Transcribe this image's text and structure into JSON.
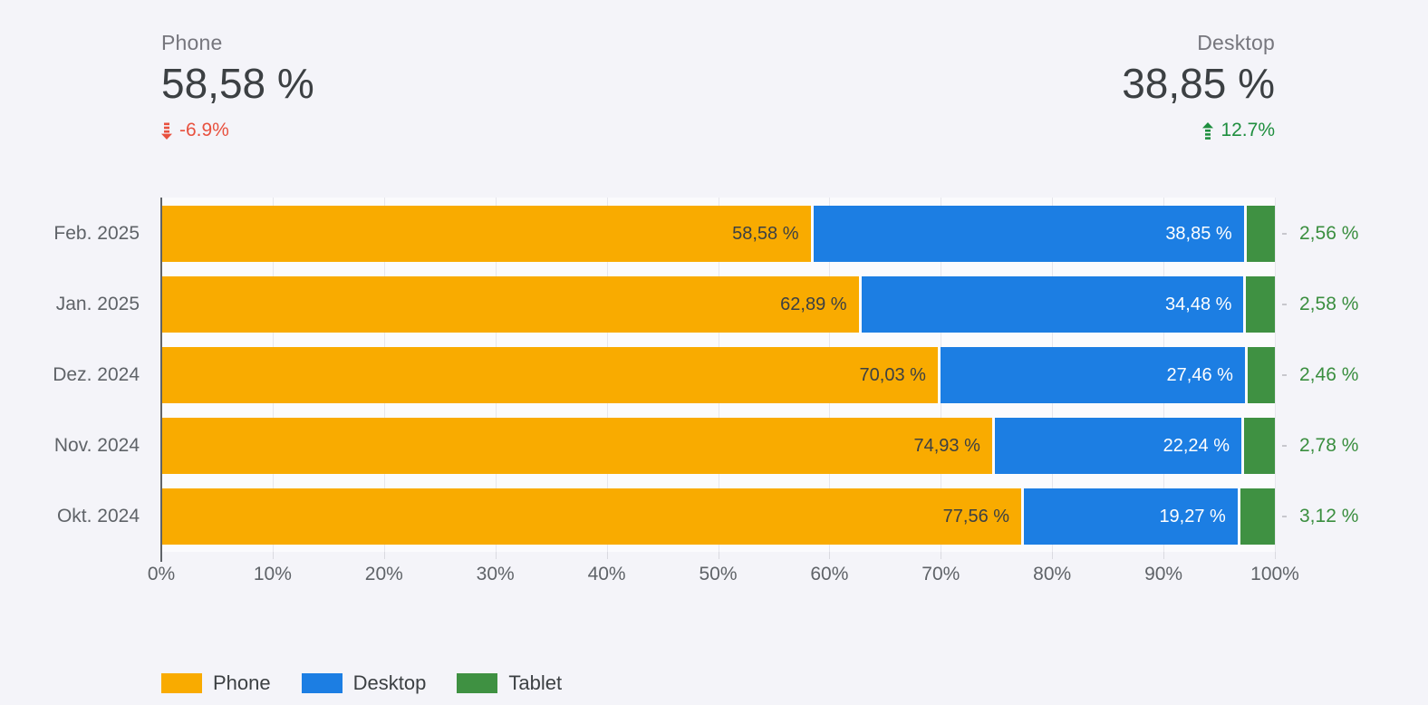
{
  "scorecards": [
    {
      "label": "Phone",
      "value": "58,58 %",
      "change": "-6.9%",
      "direction": "down"
    },
    {
      "label": "Desktop",
      "value": "38,85 %",
      "change": "12.7%",
      "direction": "up"
    }
  ],
  "colors": {
    "background": "#F4F4F9",
    "phone": "#F9AB00",
    "desktop": "#1C7EE3",
    "tablet": "#3F9142",
    "negative_change": "#E8513F",
    "positive_change": "#1E8E3E",
    "axis_text": "#5F6368",
    "value_text": "#3C4043"
  },
  "chart_data": {
    "type": "bar",
    "orientation": "horizontal",
    "stacked": true,
    "unit": "%",
    "title": "",
    "xlabel": "",
    "ylabel": "",
    "xlim": [
      0,
      100
    ],
    "x_ticks": [
      "0%",
      "10%",
      "20%",
      "30%",
      "40%",
      "50%",
      "60%",
      "70%",
      "80%",
      "90%",
      "100%"
    ],
    "grid": true,
    "legend_position": "bottom",
    "categories": [
      "Feb. 2025",
      "Jan. 2025",
      "Dez. 2024",
      "Nov. 2024",
      "Okt. 2024"
    ],
    "series": [
      {
        "name": "Phone",
        "color": "#F9AB00",
        "label_position": "inside",
        "label_color": "#3C4043",
        "values": [
          58.58,
          62.89,
          70.03,
          74.93,
          77.56
        ],
        "labels": [
          "58,58 %",
          "62,89 %",
          "70,03 %",
          "74,93 %",
          "77,56 %"
        ]
      },
      {
        "name": "Desktop",
        "color": "#1C7EE3",
        "label_position": "inside",
        "label_color": "#FFFFFF",
        "values": [
          38.85,
          34.48,
          27.46,
          22.24,
          19.27
        ],
        "labels": [
          "38,85 %",
          "34,48 %",
          "27,46 %",
          "22,24 %",
          "19,27 %"
        ]
      },
      {
        "name": "Tablet",
        "color": "#3F9142",
        "label_position": "outside",
        "label_color": "#3A8E3F",
        "values": [
          2.56,
          2.58,
          2.46,
          2.78,
          3.12
        ],
        "labels": [
          "2,56 %",
          "2,58 %",
          "2,46 %",
          "2,78 %",
          "3,12 %"
        ]
      }
    ],
    "legend": [
      "Phone",
      "Desktop",
      "Tablet"
    ]
  }
}
